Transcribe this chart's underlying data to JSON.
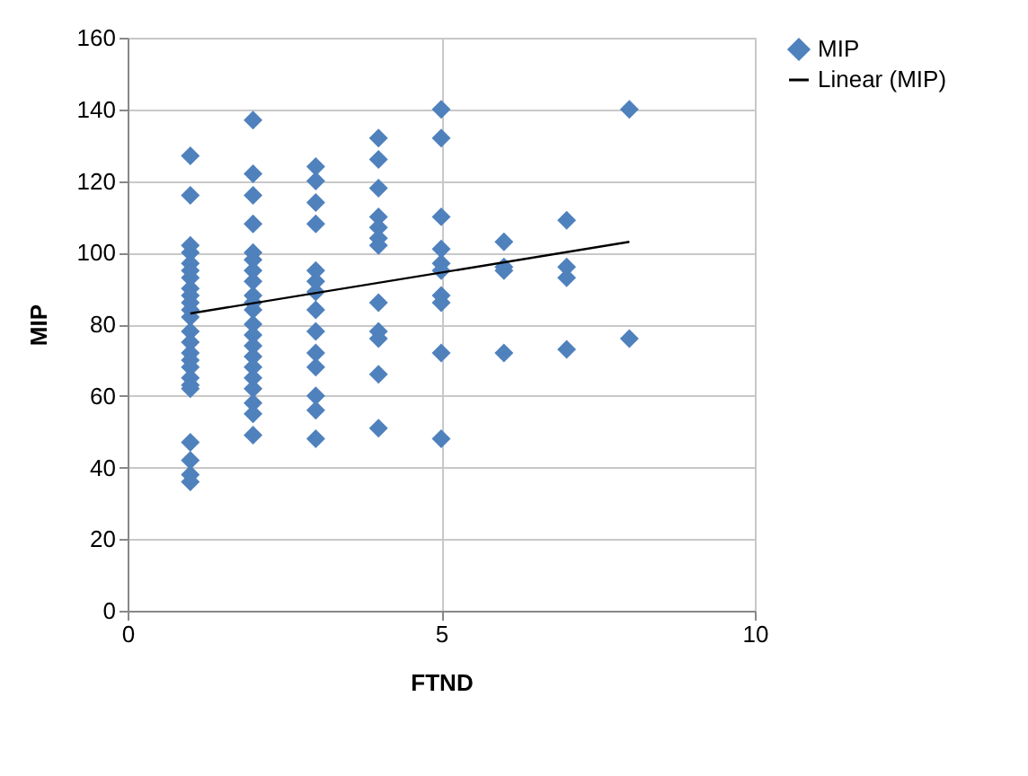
{
  "chart_data": {
    "type": "scatter",
    "xlabel": "FTND",
    "ylabel": "MIP",
    "xlim": [
      0,
      10
    ],
    "xticks": [
      0,
      5,
      10
    ],
    "ylim": [
      0,
      160
    ],
    "yticks": [
      0,
      20,
      40,
      60,
      80,
      100,
      120,
      140,
      160
    ],
    "grid": true,
    "legend": "right",
    "marker": "diamond",
    "series": [
      {
        "name": "MIP",
        "color": "#4f81bd",
        "x": [
          1,
          1,
          1,
          1,
          1,
          1,
          1,
          1,
          1,
          1,
          1,
          1,
          1,
          1,
          1,
          1,
          1,
          1,
          1,
          1,
          1,
          1,
          1,
          1,
          2,
          2,
          2,
          2,
          2,
          2,
          2,
          2,
          2,
          2,
          2,
          2,
          2,
          2,
          2,
          2,
          2,
          2,
          2,
          2,
          2,
          3,
          3,
          3,
          3,
          3,
          3,
          3,
          3,
          3,
          3,
          3,
          3,
          3,
          3,
          4,
          4,
          4,
          4,
          4,
          4,
          4,
          4,
          4,
          4,
          4,
          4,
          5,
          5,
          5,
          5,
          5,
          5,
          5,
          5,
          5,
          5,
          6,
          6,
          6,
          6,
          7,
          7,
          7,
          7,
          8,
          8
        ],
        "values": [
          127,
          116,
          102,
          100,
          97,
          95,
          93,
          90,
          88,
          86,
          84,
          82,
          78,
          75,
          72,
          70,
          68,
          65,
          63,
          62,
          47,
          42,
          38,
          36,
          137,
          122,
          116,
          108,
          100,
          98,
          95,
          92,
          88,
          86,
          84,
          80,
          77,
          74,
          71,
          68,
          65,
          62,
          58,
          55,
          49,
          124,
          120,
          114,
          108,
          95,
          92,
          89,
          84,
          78,
          72,
          68,
          60,
          56,
          48,
          132,
          126,
          118,
          110,
          107,
          104,
          102,
          86,
          78,
          76,
          66,
          51,
          140,
          132,
          110,
          101,
          97,
          95,
          88,
          86,
          72,
          48,
          103,
          96,
          95,
          72,
          109,
          96,
          93,
          73,
          140,
          76
        ]
      },
      {
        "name": "Linear (MIP)",
        "type": "line",
        "color": "#000000",
        "marker": "none",
        "x": [
          1,
          8
        ],
        "values": [
          83,
          103
        ]
      }
    ]
  }
}
